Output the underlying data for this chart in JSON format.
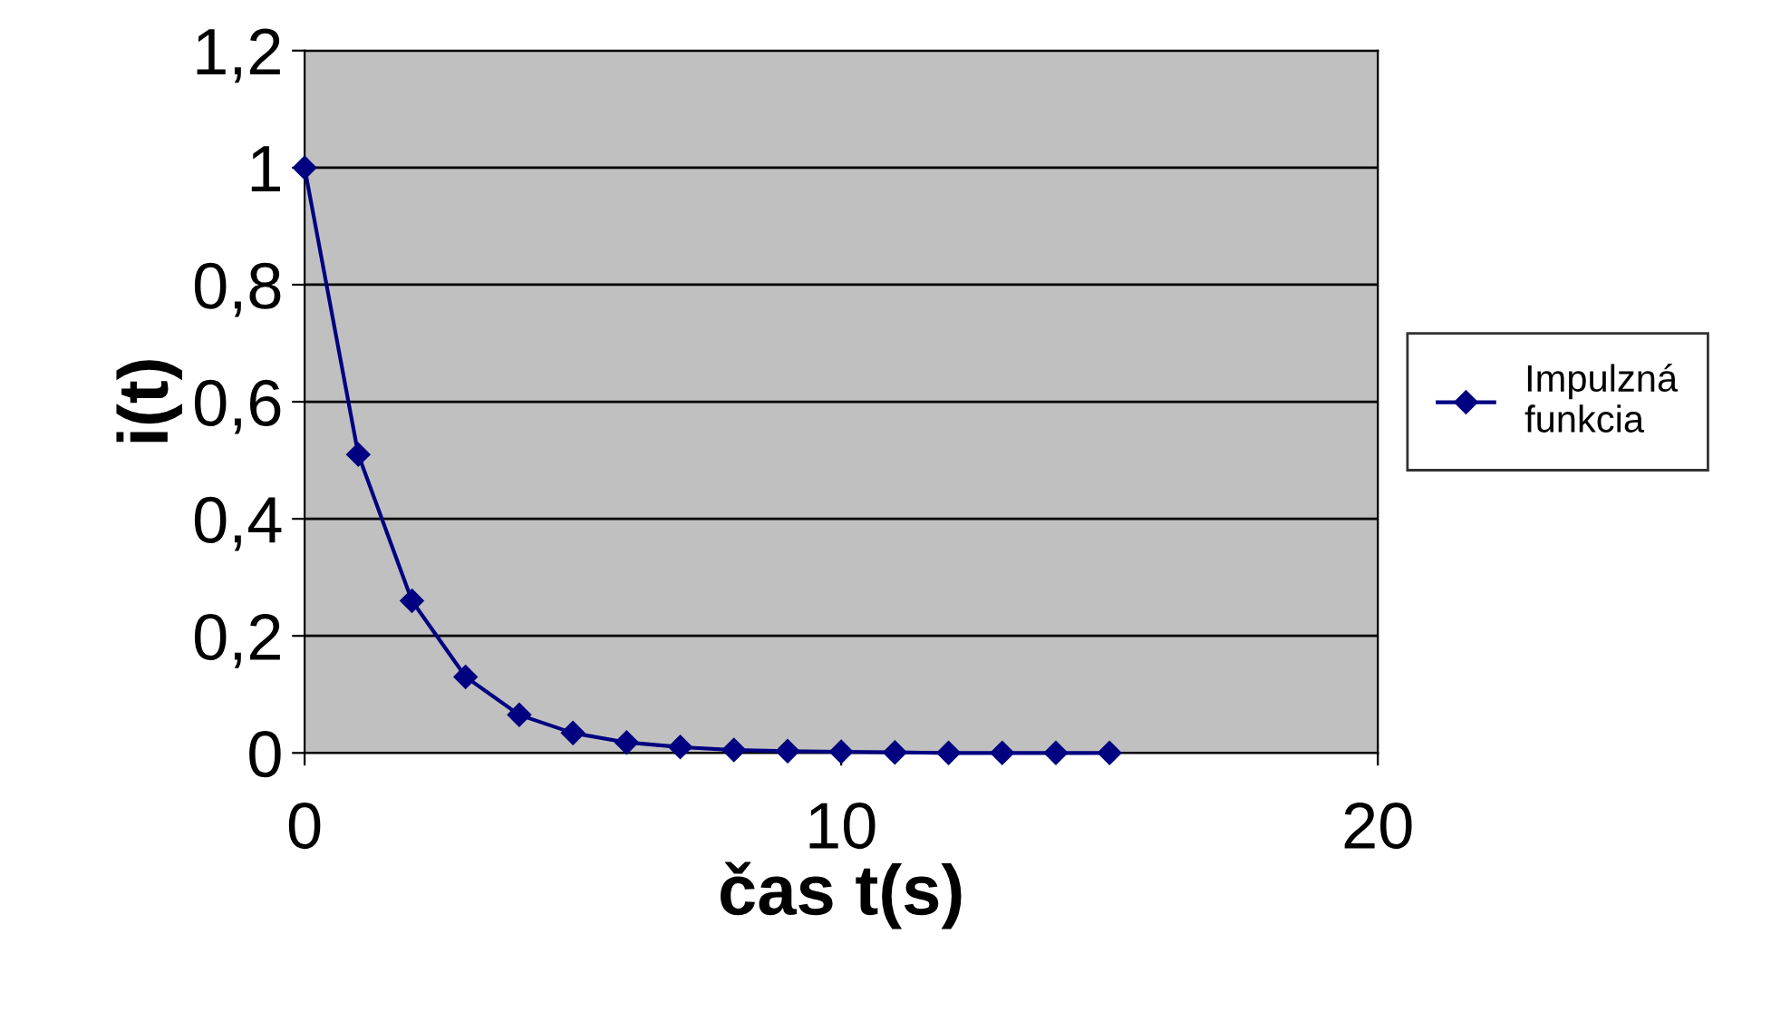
{
  "chart_data": {
    "type": "line",
    "xlabel": "čas t(s)",
    "ylabel": "i(t)",
    "x": [
      0,
      1,
      2,
      3,
      4,
      5,
      6,
      7,
      8,
      9,
      10,
      11,
      12,
      13,
      14,
      15
    ],
    "series": [
      {
        "name": "Impulzná funkcia",
        "color": "#000080",
        "values": [
          1,
          0.51,
          0.26,
          0.13,
          0.065,
          0.034,
          0.018,
          0.01,
          0.005,
          0.003,
          0.002,
          0.001,
          0,
          0,
          0,
          0
        ]
      }
    ],
    "xlim": [
      0,
      20
    ],
    "xticks": [
      0,
      10,
      20
    ],
    "ylim": [
      0,
      1.2
    ],
    "yticks": [
      0,
      {
        "value": 0.2,
        "label": "0,2"
      },
      {
        "value": 0.4,
        "label": "0,4"
      },
      {
        "value": 0.6,
        "label": "0,6"
      },
      {
        "value": 0.8,
        "label": "0,8"
      },
      1,
      {
        "value": 1.2,
        "label": "1,2"
      }
    ],
    "grid": "y",
    "legend": "right",
    "marker": "diamond",
    "line_style": "solid"
  }
}
